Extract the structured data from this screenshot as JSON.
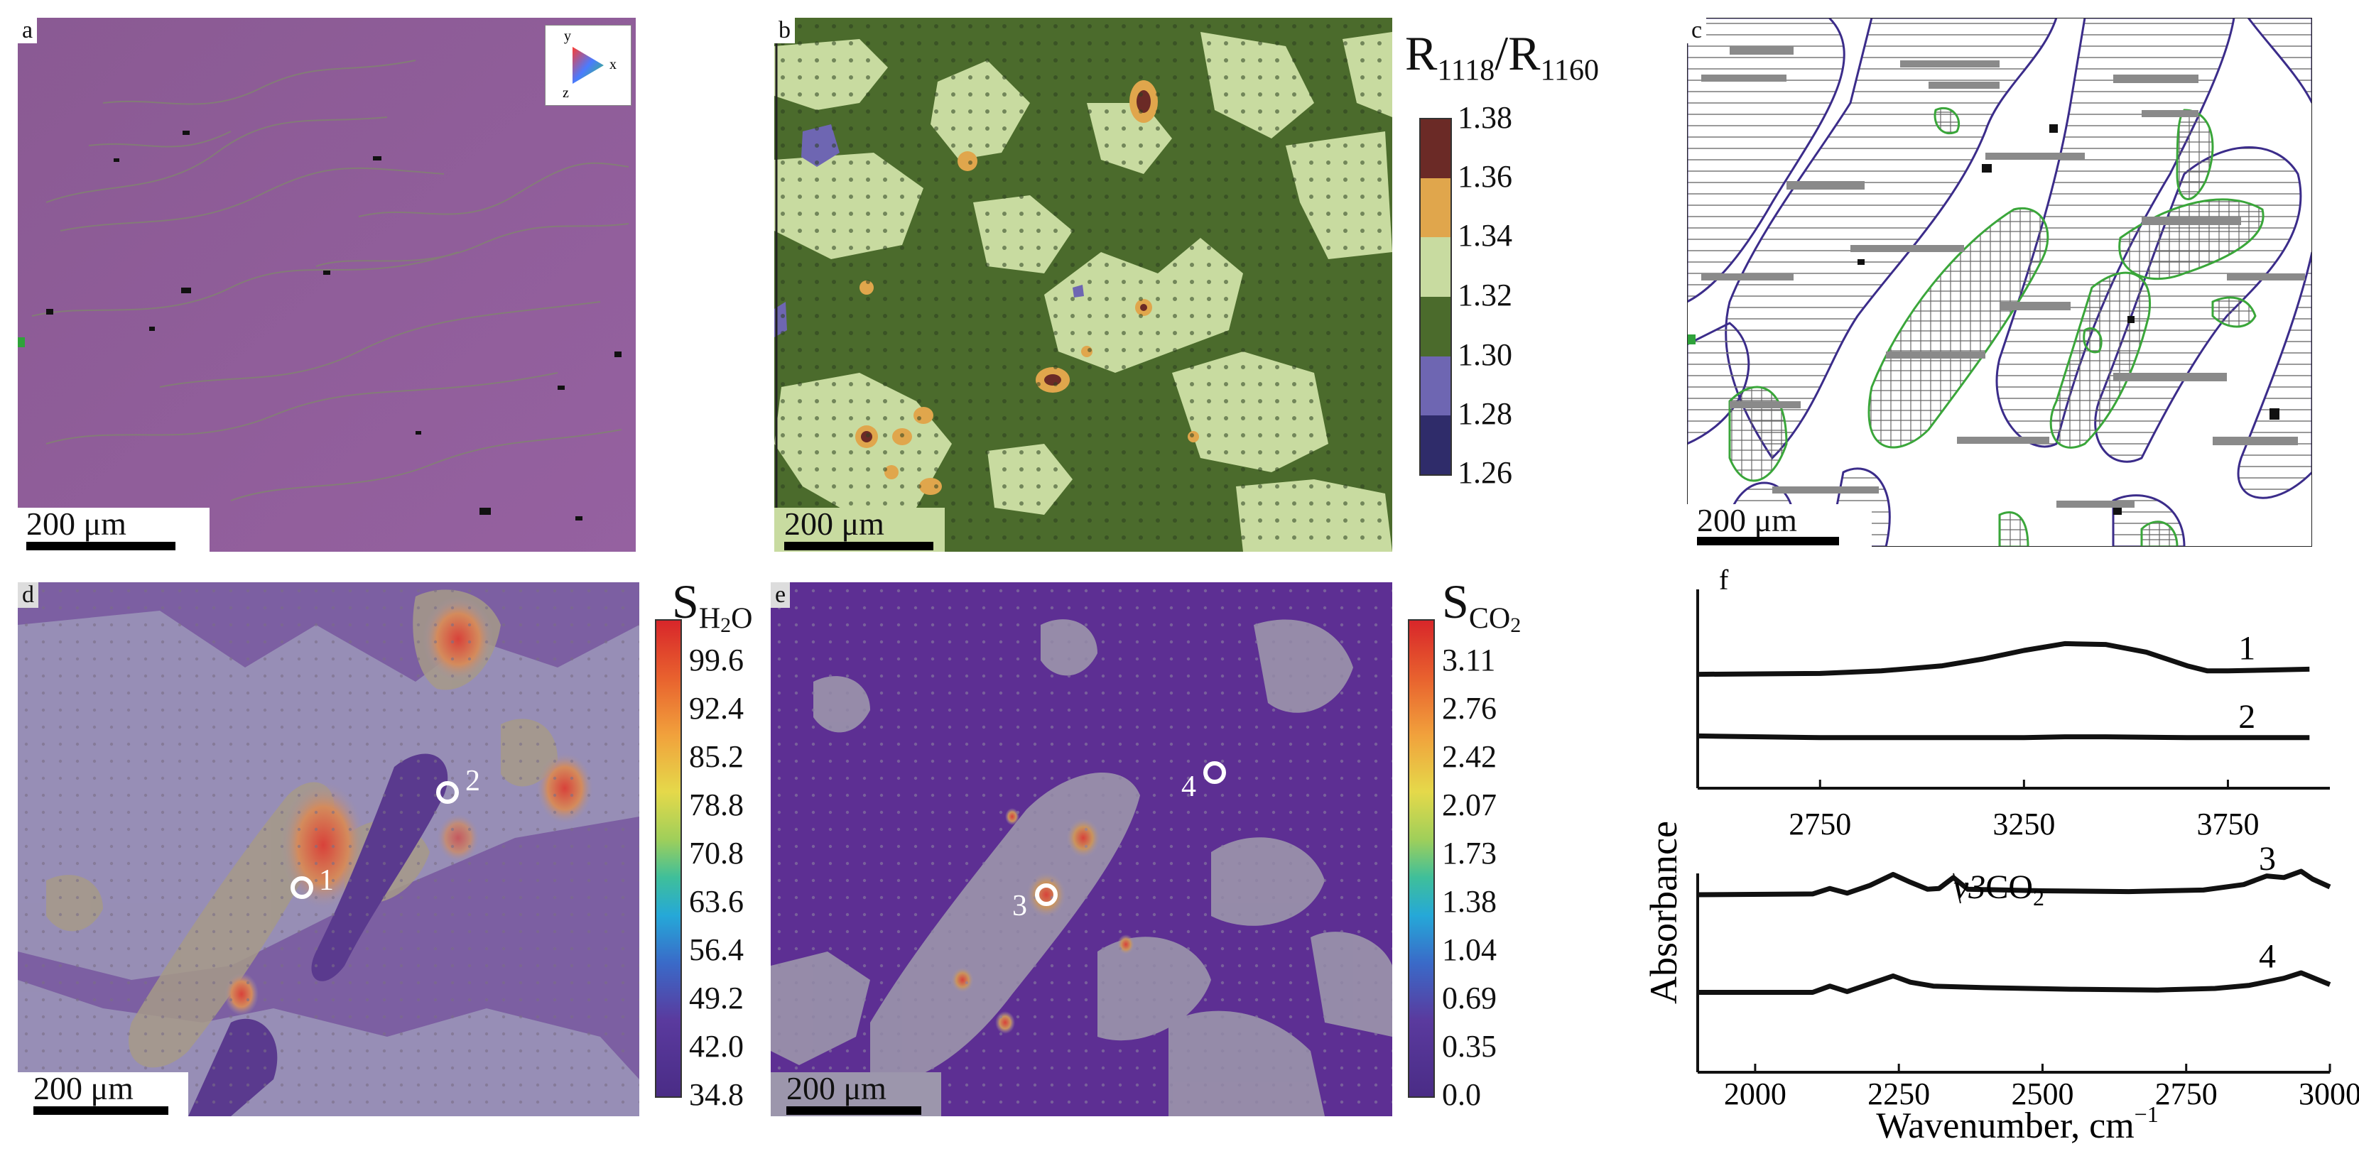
{
  "panels": {
    "a": {
      "label": "a",
      "scale_bar": "200 μm",
      "triad": {
        "x": "x",
        "y": "y",
        "z": "z"
      }
    },
    "b": {
      "label": "b",
      "scale_bar": "200 μm",
      "colorbar_title_main": "R",
      "colorbar_title_sub1": "1118",
      "colorbar_title_sep": "/R",
      "colorbar_title_sub2": "1160",
      "ticks": [
        "1.38",
        "1.36",
        "1.34",
        "1.32",
        "1.30",
        "1.28",
        "1.26"
      ],
      "colors": [
        "#6b2a26",
        "#e0a64c",
        "#c8dba0",
        "#4b6b2c",
        "#6e66b2",
        "#2f2c6a"
      ]
    },
    "c": {
      "label": "c",
      "scale_bar": "200 μm"
    },
    "d": {
      "label": "d",
      "scale_bar": "200 μm",
      "colorbar_title_main": "S",
      "colorbar_title_sub": "H",
      "colorbar_title_sub_num": "2",
      "colorbar_title_sub_tail": "O",
      "ticks": [
        "99.6",
        "92.4",
        "85.2",
        "78.8",
        "70.8",
        "63.6",
        "56.4",
        "49.2",
        "42.0",
        "34.8"
      ],
      "points": [
        "1",
        "2"
      ]
    },
    "e": {
      "label": "e",
      "scale_bar": "200 μm",
      "colorbar_title_main": "S",
      "colorbar_title_sub": "CO",
      "colorbar_title_sub_num": "2",
      "ticks": [
        "3.11",
        "2.76",
        "2.42",
        "2.07",
        "1.73",
        "1.38",
        "1.04",
        "0.69",
        "0.35",
        "0.0"
      ],
      "points": [
        "3",
        "4"
      ]
    },
    "f": {
      "label": "f",
      "ylabel": "Absorbance",
      "xlabel": "Wavenumber, cm",
      "xlabel_sup": "−1",
      "annotation": "v3",
      "annotation_tail": "CO",
      "annotation_sub": "2"
    }
  },
  "chart_data": {
    "type": "line",
    "title": "",
    "ylabel": "Absorbance",
    "panels": [
      {
        "name": "upper",
        "xlabel": "",
        "xlim": [
          2450,
          4000
        ],
        "xticks": [
          "2750",
          "3250",
          "3750"
        ],
        "series": [
          {
            "name": "1",
            "x": [
              2450,
              2750,
              2900,
              3050,
              3150,
              3250,
              3350,
              3450,
              3550,
              3650,
              3700,
              3750,
              3850,
              3950
            ],
            "y": [
              0.42,
              0.43,
              0.46,
              0.52,
              0.6,
              0.7,
              0.78,
              0.77,
              0.68,
              0.52,
              0.46,
              0.46,
              0.47,
              0.48
            ]
          },
          {
            "name": "2",
            "x": [
              2450,
              2750,
              3050,
              3250,
              3350,
              3450,
              3650,
              3950
            ],
            "y": [
              0.28,
              0.26,
              0.26,
              0.26,
              0.27,
              0.27,
              0.26,
              0.26
            ]
          }
        ]
      },
      {
        "name": "lower",
        "xlabel": "Wavenumber, cm−1",
        "xlim": [
          1900,
          3000
        ],
        "xticks": [
          "2000",
          "2250",
          "2500",
          "2750",
          "3000"
        ],
        "annotation": "v3CO2",
        "series": [
          {
            "name": "3",
            "x": [
              1900,
              2100,
              2130,
              2160,
              2200,
              2240,
              2270,
              2300,
              2320,
              2345,
              2370,
              2500,
              2650,
              2780,
              2850,
              2890,
              2920,
              2950,
              2970,
              3000
            ],
            "y": [
              0.5,
              0.51,
              0.58,
              0.52,
              0.62,
              0.76,
              0.66,
              0.57,
              0.58,
              0.72,
              0.57,
              0.55,
              0.54,
              0.56,
              0.63,
              0.74,
              0.72,
              0.8,
              0.7,
              0.6
            ]
          },
          {
            "name": "4",
            "x": [
              1900,
              2100,
              2130,
              2160,
              2200,
              2240,
              2270,
              2310,
              2400,
              2550,
              2700,
              2800,
              2860,
              2920,
              2950,
              2970,
              3000
            ],
            "y": [
              0.25,
              0.25,
              0.33,
              0.26,
              0.36,
              0.46,
              0.38,
              0.33,
              0.31,
              0.29,
              0.28,
              0.3,
              0.34,
              0.43,
              0.5,
              0.44,
              0.35
            ]
          }
        ]
      }
    ]
  }
}
